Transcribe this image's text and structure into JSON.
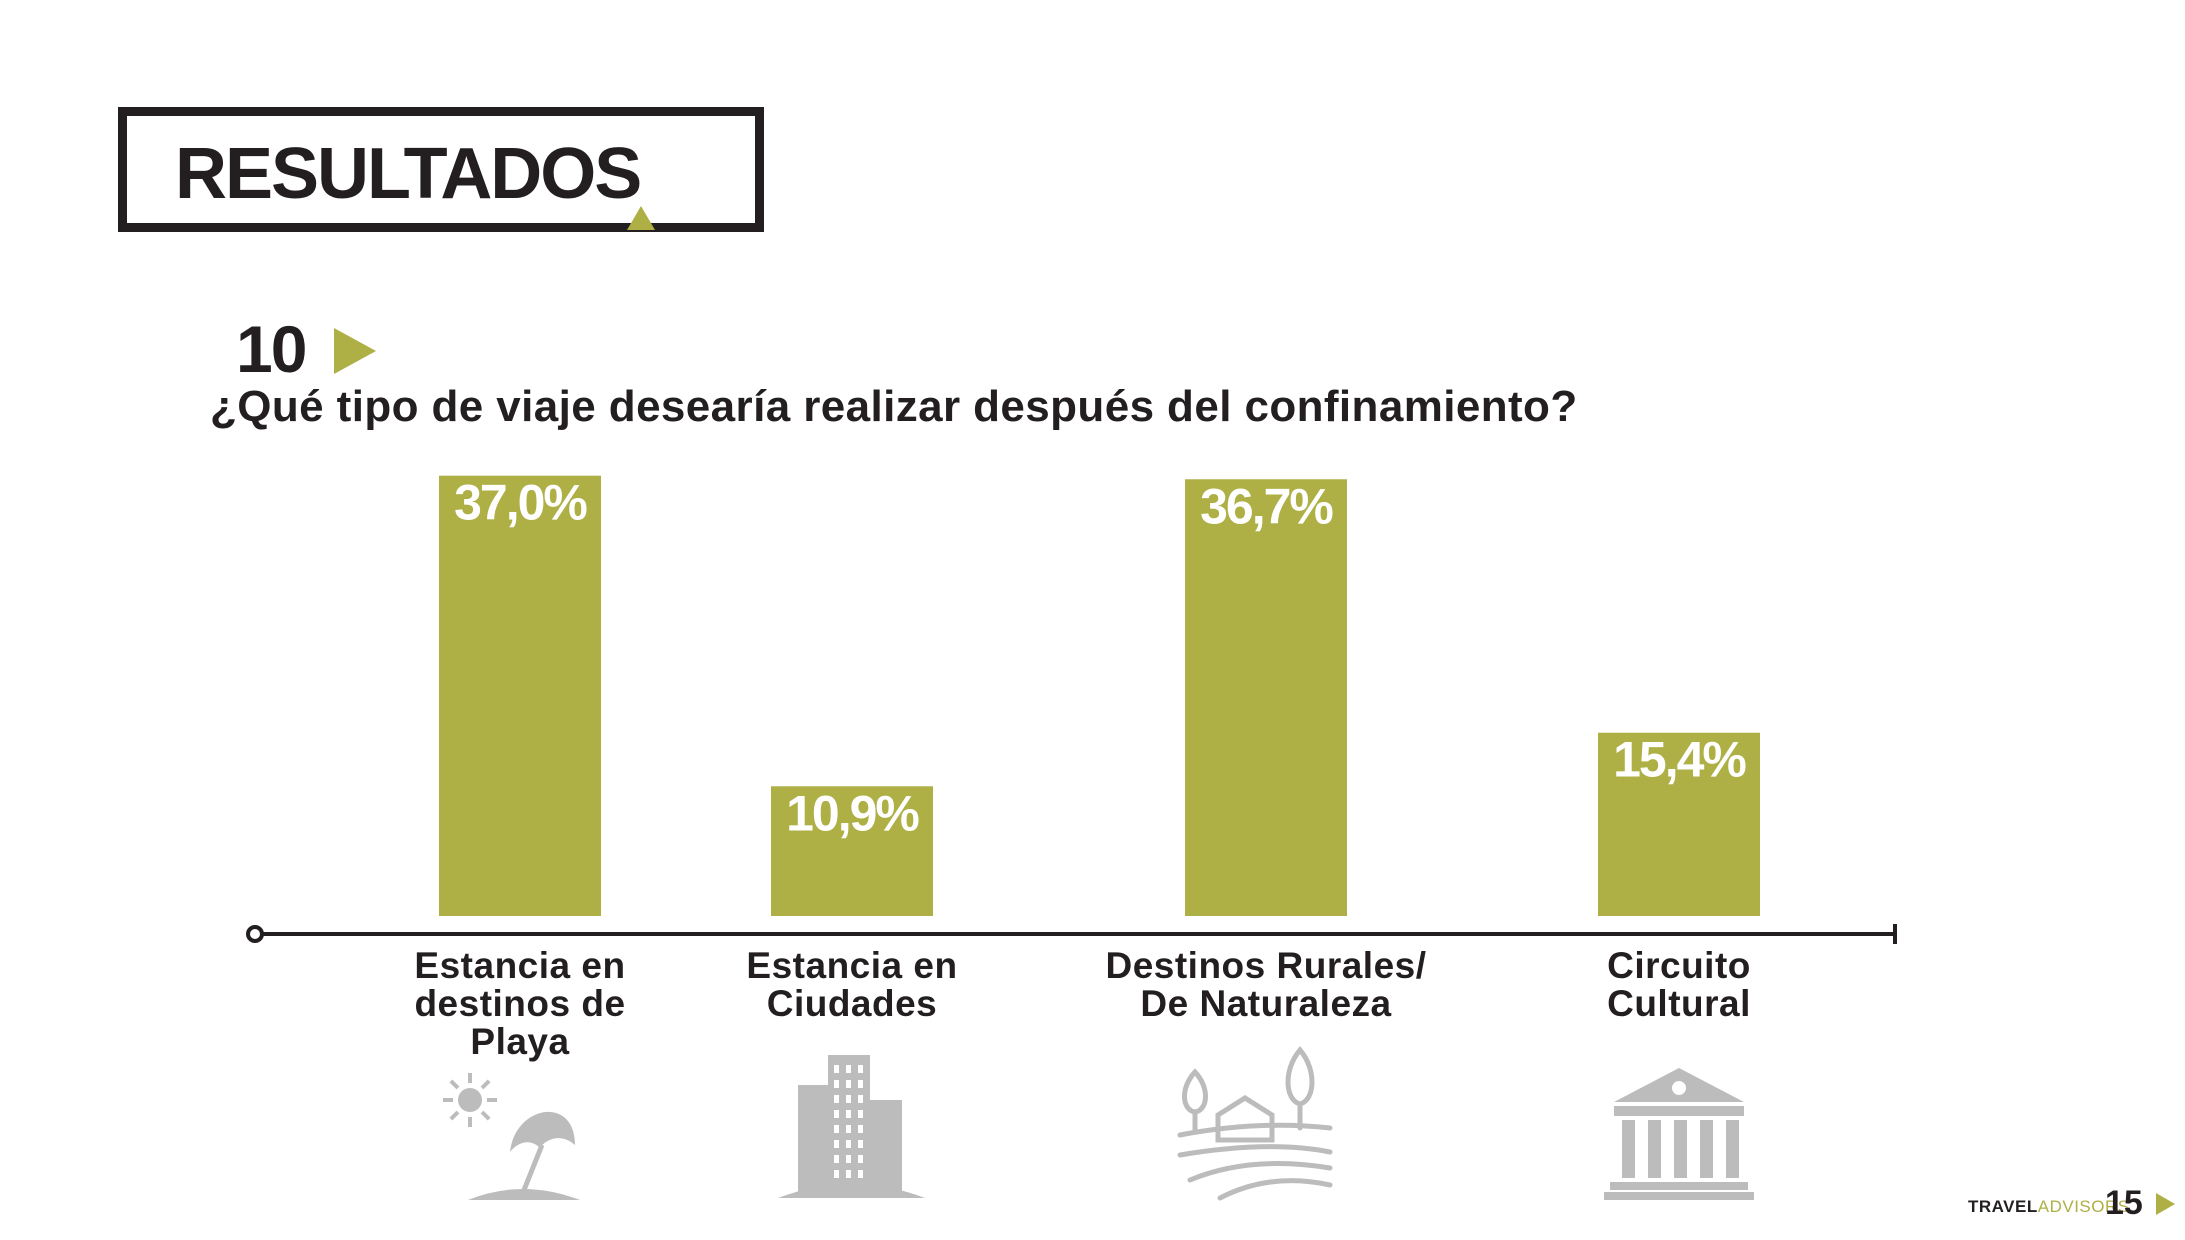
{
  "header": {
    "title": "RESULTADOS"
  },
  "question": {
    "number": "10",
    "text": "¿Qué tipo de viaje desearía realizar después del confinamiento?"
  },
  "colors": {
    "bar": "#aeaf45",
    "accent": "#aeaf45",
    "text": "#231f20",
    "icon": "#bcbcbc"
  },
  "chart_data": {
    "type": "bar",
    "title": "",
    "xlabel": "",
    "ylabel": "",
    "categories": [
      [
        "Estancia en",
        "destinos de",
        "Playa"
      ],
      [
        "Estancia en",
        "Ciudades"
      ],
      [
        "Destinos Rurales/",
        "De Naturaleza"
      ],
      [
        "Circuito",
        "Cultural"
      ]
    ],
    "values": [
      37.0,
      10.9,
      36.7,
      15.4
    ],
    "value_labels": [
      "37,0%",
      "10,9%",
      "36,7%",
      "15,4%"
    ],
    "icons": [
      "beach-umbrella-icon",
      "city-buildings-icon",
      "countryside-landscape-icon",
      "museum-building-icon"
    ],
    "grid": false,
    "legend": "none"
  },
  "footer": {
    "brand_part1": "TRAVEL",
    "brand_part2": "ADVISORS",
    "page": "15"
  }
}
